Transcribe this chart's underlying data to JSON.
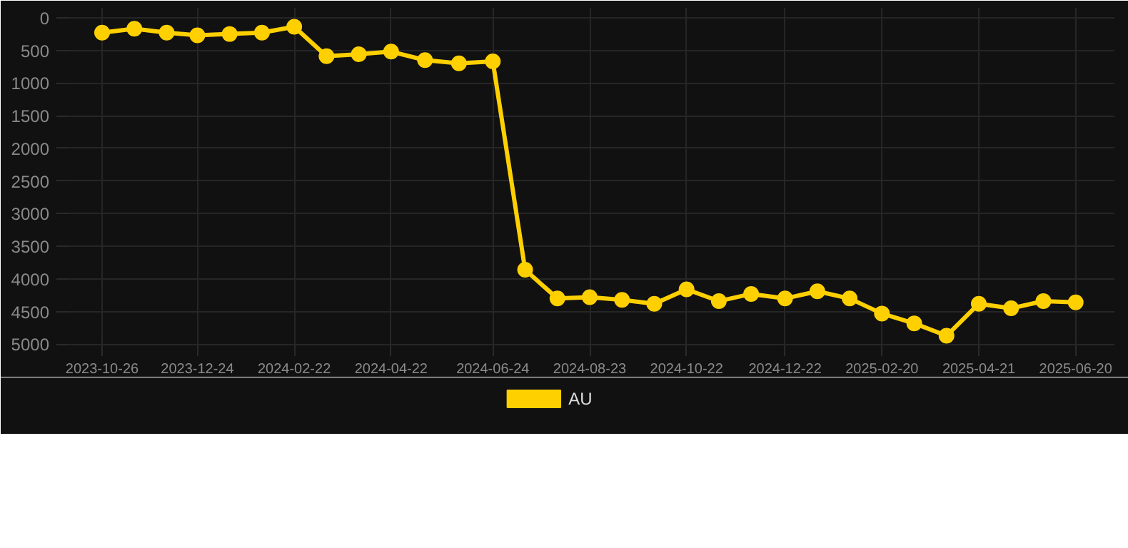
{
  "chart_data": {
    "type": "line",
    "x": [
      "2023-10-26",
      "2023-11-15",
      "2023-12-05",
      "2023-12-24",
      "2024-01-13",
      "2024-02-02",
      "2024-02-22",
      "2024-03-13",
      "2024-04-02",
      "2024-04-22",
      "2024-05-13",
      "2024-06-03",
      "2024-06-24",
      "2024-07-14",
      "2024-08-03",
      "2024-08-23",
      "2024-09-12",
      "2024-10-02",
      "2024-10-22",
      "2024-11-11",
      "2024-12-01",
      "2024-12-22",
      "2025-01-11",
      "2025-01-31",
      "2025-02-20",
      "2025-03-12",
      "2025-04-01",
      "2025-04-21",
      "2025-05-11",
      "2025-05-31",
      "2025-06-20"
    ],
    "series": [
      {
        "name": "AU",
        "color": "#ffd000",
        "values": [
          230,
          170,
          230,
          270,
          250,
          230,
          140,
          590,
          560,
          520,
          650,
          700,
          670,
          3860,
          4300,
          4280,
          4320,
          4380,
          4160,
          4340,
          4230,
          4300,
          4190,
          4300,
          4530,
          4680,
          4870,
          4380,
          4450,
          4340,
          4360
        ]
      }
    ],
    "xlim": [
      "2023-10-03",
      "2025-07-14"
    ],
    "xticks": [
      "2023-10-26",
      "2023-12-24",
      "2024-02-22",
      "2024-04-22",
      "2024-06-24",
      "2024-08-23",
      "2024-10-22",
      "2024-12-22",
      "2025-02-20",
      "2025-04-21",
      "2025-06-20"
    ],
    "ylim": [
      5050,
      -150
    ],
    "yticks": [
      0,
      500,
      1000,
      1500,
      2000,
      2500,
      3000,
      3500,
      4000,
      4500,
      5000
    ],
    "grid": true,
    "legend": "bottom",
    "marker": "circle",
    "line_style": "solid"
  }
}
